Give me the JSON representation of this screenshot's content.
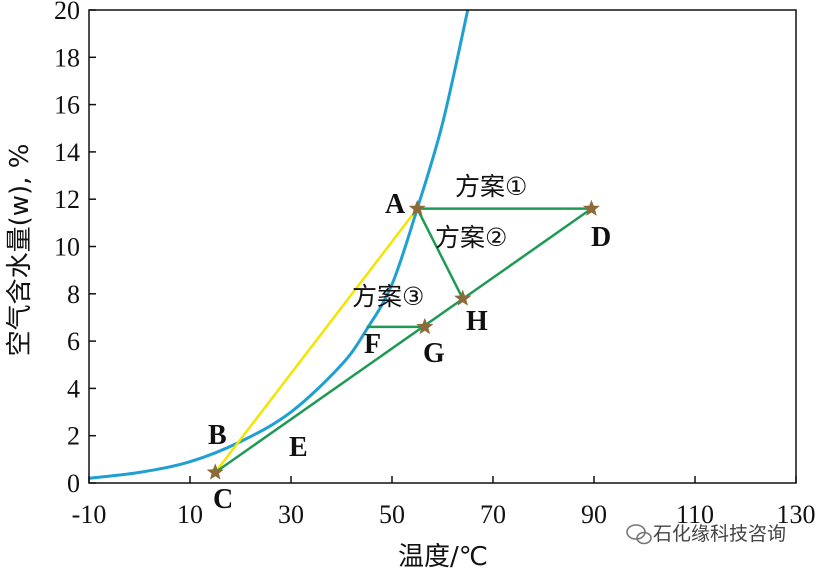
{
  "chart_data": {
    "type": "line",
    "xlabel": "温度/℃",
    "ylabel": "空气含水量(w), %",
    "xlim": [
      -10,
      130
    ],
    "ylim": [
      0,
      20
    ],
    "xticks": [
      "-10",
      "10",
      "30",
      "50",
      "70",
      "90",
      "110",
      "130"
    ],
    "yticks": [
      "0",
      "2",
      "4",
      "6",
      "8",
      "10",
      "12",
      "14",
      "16",
      "18",
      "20"
    ],
    "grid": false,
    "colors": {
      "saturation": "#1ea0d2",
      "yellow": "#f2e600",
      "green": "#1f9a55",
      "star": "#8b6b3a"
    },
    "saturation_curve": [
      [
        -10,
        0.2
      ],
      [
        0,
        0.45
      ],
      [
        10,
        0.9
      ],
      [
        20,
        1.75
      ],
      [
        30,
        3.0
      ],
      [
        40,
        5.0
      ],
      [
        45,
        6.5
      ],
      [
        50,
        8.4
      ],
      [
        55,
        11.6
      ],
      [
        60,
        15.2
      ],
      [
        65,
        20
      ]
    ],
    "points": [
      {
        "label": "A",
        "x": 55,
        "y": 11.6,
        "star": true
      },
      {
        "label": "B",
        "x": 17,
        "y": 1.2,
        "star": false
      },
      {
        "label": "C",
        "x": 15,
        "y": 0.45,
        "star": true
      },
      {
        "label": "D",
        "x": 89.5,
        "y": 11.6,
        "star": true
      },
      {
        "label": "E",
        "x": 30,
        "y": 2.8,
        "star": false
      },
      {
        "label": "F",
        "x": 45,
        "y": 6.6,
        "star": false
      },
      {
        "label": "G",
        "x": 56.5,
        "y": 6.6,
        "star": true
      },
      {
        "label": "H",
        "x": 64,
        "y": 7.8,
        "star": true
      }
    ],
    "segments": [
      {
        "from": "C",
        "to": "A",
        "color": "yellow"
      },
      {
        "from": "A",
        "to": "D",
        "color": "green"
      },
      {
        "from": "A",
        "to": "H",
        "color": "green"
      },
      {
        "from": "C",
        "to": "D",
        "color": "green"
      },
      {
        "from": "F",
        "to": "G",
        "color": "green"
      }
    ],
    "annotations": [
      "方案①",
      "方案②",
      "方案③"
    ]
  },
  "watermark": "石化缘科技咨询"
}
